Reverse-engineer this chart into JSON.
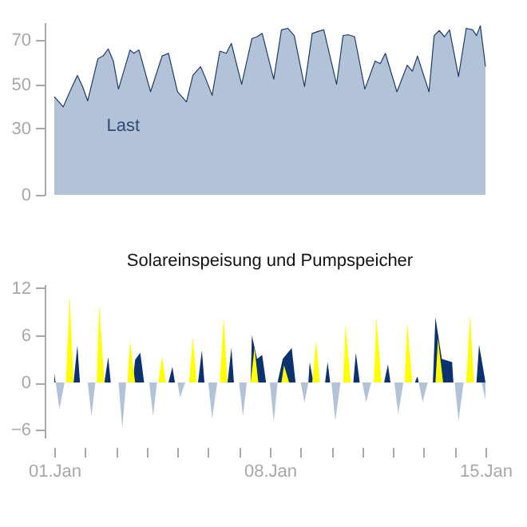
{
  "chart_data": [
    {
      "type": "area",
      "xlim": [
        "--01-01",
        "--01-15"
      ],
      "ylim": [
        0,
        78
      ],
      "yticks": [
        0,
        30,
        50,
        70
      ],
      "tick_labels": "y",
      "series": [
        {
          "name": "Last",
          "color": "#b3c3d7",
          "x": [
            "--01-01T00:00",
            "--01-01T07:00",
            "--01-01T13:00",
            "--01-01T18:00",
            "--01-01T22:00",
            "--01-02T02:00",
            "--01-02T10:00",
            "--01-02T14:00",
            "--01-02T18:00",
            "--01-02T22:00",
            "--01-03T02:00",
            "--01-03T11:00",
            "--01-03T14:00",
            "--01-03T18:00",
            "--01-04T03:00",
            "--01-04T12:00",
            "--01-04T17:00",
            "--01-05T00:00",
            "--01-05T07:00",
            "--01-05T12:00",
            "--01-05T18:00",
            "--01-05T22:00",
            "--01-06T03:00",
            "--01-06T09:00",
            "--01-06T14:00",
            "--01-06T18:00",
            "--01-07T02:00",
            "--01-07T10:00",
            "--01-07T14:00",
            "--01-07T18:00",
            "--01-08T03:00",
            "--01-08T09:00",
            "--01-08T14:00",
            "--01-08T19:00",
            "--01-09T03:00",
            "--01-09T09:00",
            "--01-09T14:00",
            "--01-09T18:00",
            "--01-10T04:00",
            "--01-10T09:00",
            "--01-10T13:00",
            "--01-10T18:00",
            "--01-11T02:00",
            "--01-11T10:00",
            "--01-11T14:00",
            "--01-11T18:00",
            "--01-12T03:00",
            "--01-12T11:00",
            "--01-12T15:00",
            "--01-12T19:00",
            "--01-13T04:00",
            "--01-13T08:00",
            "--01-13T12:00",
            "--01-13T16:00",
            "--01-13T20:00",
            "--01-14T03:00",
            "--01-14T09:00",
            "--01-14T14:00",
            "--01-14T17:00",
            "--01-14T20:00",
            "--01-15T00:00"
          ],
          "values": [
            44.4,
            39.8,
            47.8,
            54,
            49,
            42.5,
            61.6,
            62.8,
            66,
            60.5,
            47.8,
            65.5,
            64,
            65.5,
            46.6,
            62.8,
            64,
            46.6,
            42,
            54,
            58,
            52.5,
            45,
            65,
            64,
            68.5,
            50,
            70.7,
            71.5,
            73,
            52.3,
            74.6,
            75.3,
            72,
            49,
            73,
            74,
            74.6,
            50,
            72,
            72.4,
            71.5,
            47.8,
            60.5,
            59.3,
            64,
            46.6,
            58.6,
            55.9,
            62.8,
            46.6,
            72,
            74.3,
            71.5,
            74.6,
            53.5,
            75.3,
            74.6,
            72,
            76.5,
            58
          ]
        }
      ]
    },
    {
      "type": "area",
      "title": "Solareinspeisung und Pumpspeicher",
      "xlim": [
        "--01-01",
        "--01-15"
      ],
      "ylim": [
        -7,
        12.5
      ],
      "yticks": [
        -6,
        0,
        6,
        12
      ],
      "xticks": [
        {
          "value": "--01-01",
          "label": "01.Jan"
        },
        {
          "value": "--01-02",
          "label": null
        },
        {
          "value": "--01-03",
          "label": null
        },
        {
          "value": "--01-04",
          "label": null
        },
        {
          "value": "--01-05",
          "label": null
        },
        {
          "value": "--01-06",
          "label": null
        },
        {
          "value": "--01-07",
          "label": null
        },
        {
          "value": "--01-08",
          "label": "08.Jan"
        },
        {
          "value": "--01-09",
          "label": null
        },
        {
          "value": "--01-10",
          "label": null
        },
        {
          "value": "--01-11",
          "label": null
        },
        {
          "value": "--01-12",
          "label": null
        },
        {
          "value": "--01-13",
          "label": null
        },
        {
          "value": "--01-14",
          "label": null
        },
        {
          "value": "--01-15",
          "label": "15.Jan"
        }
      ],
      "series": [
        {
          "color": "#0a3170",
          "x": [
            "--01-01T00:00",
            "--01-01T01:00",
            "--01-01T15:00",
            "--01-01T18:00",
            "--01-01T20:00",
            "--01-02T15:00",
            "--01-02T18:00",
            "--01-02T20:00",
            "--01-03T13:00",
            "--01-03T15:00",
            "--01-03T19:00",
            "--01-03T22:00",
            "--01-04T17:00",
            "--01-04T20:00",
            "--01-04T22:00",
            "--01-05T16:00",
            "--01-05T19:00",
            "--01-05T21:00",
            "--01-06T15:00",
            "--01-06T18:00",
            "--01-06T20:00",
            "--01-07T09:00",
            "--01-07T10:00",
            "--01-07T14:00",
            "--01-07T18:00",
            "--01-07T21:00",
            "--01-08T06:00",
            "--01-08T10:00",
            "--01-08T17:00",
            "--01-08T20:00",
            "--01-09T06:00",
            "--01-09T07:00",
            "--01-09T10:00",
            "--01-09T19:00",
            "--01-09T21:00",
            "--01-09T23:00",
            "--01-10T17:00",
            "--01-10T19:00",
            "--01-10T22:00",
            "--01-11T17:00",
            "--01-11T20:00",
            "--01-11T22:00",
            "--01-12T17:00",
            "--01-12T19:00",
            "--01-12T20:00",
            "--01-13T07:00",
            "--01-13T09:00",
            "--01-13T14:00",
            "--01-13T22:00",
            "--01-13T23:00",
            "--01-14T17:00",
            "--01-14T19:00",
            "--01-14T23:00",
            "--01-15T00:00"
          ],
          "values": [
            1.1,
            0,
            0,
            4.7,
            0,
            0,
            3.2,
            0,
            0,
            2.9,
            3.8,
            0,
            0,
            2,
            0,
            0,
            4.1,
            0,
            0,
            4.4,
            0,
            0,
            6,
            3,
            3.5,
            0,
            0,
            3,
            4.4,
            0,
            0,
            2.6,
            0,
            0,
            2.6,
            0,
            0,
            3.8,
            0,
            0,
            2.3,
            0,
            0,
            0.8,
            0,
            0,
            8.3,
            3,
            2.6,
            0,
            0,
            4.8,
            1,
            0
          ]
        },
        {
          "color": "#ffff00",
          "x": [
            "--01-01T09:00",
            "--01-01T12:00",
            "--01-01T15:00",
            "--01-02T09:00",
            "--01-02T11:00",
            "--01-02T15:00",
            "--01-03T09:00",
            "--01-03T11:00",
            "--01-03T15:00",
            "--01-04T09:00",
            "--01-04T12:00",
            "--01-04T15:00",
            "--01-05T09:00",
            "--01-05T12:00",
            "--01-05T15:00",
            "--01-06T09:00",
            "--01-06T12:00",
            "--01-06T15:00",
            "--01-07T09:00",
            "--01-07T12:00",
            "--01-07T15:00",
            "--01-08T09:00",
            "--01-08T11:00",
            "--01-08T15:00",
            "--01-09T09:00",
            "--01-09T12:00",
            "--01-09T15:00",
            "--01-10T09:00",
            "--01-10T11:00",
            "--01-10T15:00",
            "--01-11T09:00",
            "--01-11T11:00",
            "--01-11T15:00",
            "--01-12T09:00",
            "--01-12T11:00",
            "--01-12T15:00",
            "--01-13T09:00",
            "--01-13T11:00",
            "--01-13T15:00",
            "--01-14T09:00",
            "--01-14T12:00",
            "--01-14T15:00"
          ],
          "values": [
            0,
            11,
            0,
            0,
            10,
            0,
            0,
            5.3,
            0,
            0,
            3.3,
            0,
            0,
            5.9,
            0,
            0,
            8.4,
            0,
            0,
            4.4,
            0,
            0,
            2.2,
            0,
            0,
            5.4,
            0,
            0,
            7.4,
            0,
            0,
            8.4,
            0,
            0,
            7.7,
            0,
            0,
            5.6,
            0,
            0,
            8.6,
            0
          ]
        },
        {
          "color": "#b3c3d7",
          "x": [
            "--01-01T01:00",
            "--01-01T04:00",
            "--01-01T08:00",
            "--01-02T02:00",
            "--01-02T05:00",
            "--01-02T08:00",
            "--01-03T02:00",
            "--01-03T05:00",
            "--01-03T08:00",
            "--01-04T02:00",
            "--01-04T05:00",
            "--01-04T08:00",
            "--01-05T00:00",
            "--01-05T02:00",
            "--01-05T06:00",
            "--01-06T00:00",
            "--01-06T03:00",
            "--01-06T07:00",
            "--01-07T00:00",
            "--01-07T03:00",
            "--01-07T06:00",
            "--01-08T00:00",
            "--01-08T03:00",
            "--01-08T06:00",
            "--01-09T00:00",
            "--01-09T03:00",
            "--01-09T06:00",
            "--01-10T00:00",
            "--01-10T03:00",
            "--01-10T07:00",
            "--01-11T00:00",
            "--01-11T03:00",
            "--01-11T07:00",
            "--01-12T01:00",
            "--01-12T04:00",
            "--01-12T08:00",
            "--01-12T20:00",
            "--01-12T23:00",
            "--01-13T03:00",
            "--01-14T00:00",
            "--01-14T03:00",
            "--01-14T07:00",
            "--01-14T21:00",
            "--01-15T00:00"
          ],
          "values": [
            0,
            -3.4,
            0,
            0,
            -4.3,
            0,
            0,
            -5.8,
            0,
            0,
            -4.3,
            0,
            0,
            -1.9,
            0,
            0,
            -4.6,
            0,
            0,
            -4.3,
            0,
            0,
            -5,
            0,
            0,
            -2.5,
            0,
            0,
            -4.9,
            0,
            0,
            -2.5,
            0,
            0,
            -4,
            0,
            0,
            -2.5,
            0,
            0,
            -4.9,
            0,
            0,
            -2.2
          ]
        }
      ]
    }
  ]
}
